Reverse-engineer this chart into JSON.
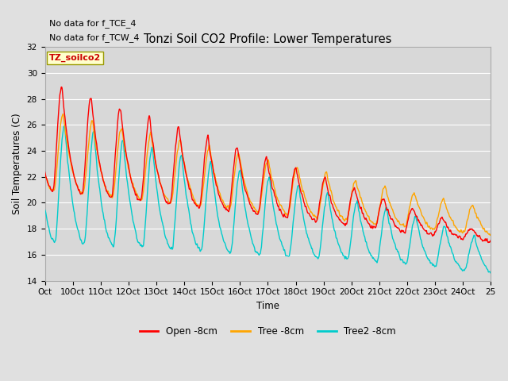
{
  "title": "Tonzi Soil CO2 Profile: Lower Temperatures",
  "ylabel": "Soil Temperatures (C)",
  "xlabel": "Time",
  "top_text_1": "No data for f_TCE_4",
  "top_text_2": "No data for f_TCW_4",
  "box_label": "TZ_soilco2",
  "xlim": [
    0,
    16
  ],
  "ylim": [
    14,
    32
  ],
  "yticks": [
    14,
    16,
    18,
    20,
    22,
    24,
    26,
    28,
    30,
    32
  ],
  "xtick_labels": [
    "Oct",
    "10Oct",
    "11Oct",
    "12Oct",
    "13Oct",
    "14Oct",
    "15Oct",
    "16Oct",
    "17Oct",
    "18Oct",
    "19Oct",
    "20Oct",
    "21Oct",
    "22Oct",
    "23Oct",
    "24Oct",
    "25"
  ],
  "fig_bg": "#e0e0e0",
  "axes_bg": "#d8d8d8",
  "grid_color": "#f0f0f0",
  "line_colors": [
    "#ff0000",
    "#ffa500",
    "#00cccc"
  ],
  "line_labels": [
    "Open -8cm",
    "Tree -8cm",
    "Tree2 -8cm"
  ],
  "line_width": 1.0,
  "figsize": [
    6.4,
    4.8
  ],
  "dpi": 100
}
